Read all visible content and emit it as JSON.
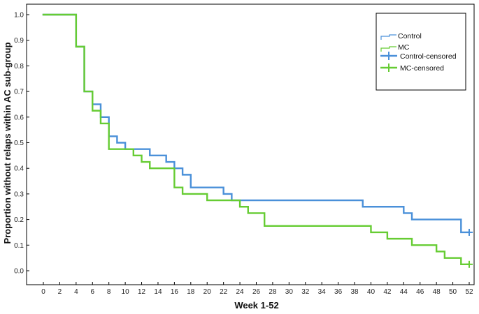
{
  "chart_data": {
    "type": "line",
    "subtype": "kaplan-meier-step",
    "xlabel": "Week 1-52",
    "ylabel": "Proportion without relaps within AC sub-group",
    "xlim": [
      0,
      52
    ],
    "ylim": [
      0.0,
      1.0
    ],
    "x_ticks": [
      "0",
      "2",
      "4",
      "6",
      "8",
      "10",
      "12",
      "14",
      "16",
      "18",
      "20",
      "22",
      "24",
      "26",
      "28",
      "30",
      "32",
      "34",
      "36",
      "38",
      "40",
      "42",
      "44",
      "46",
      "48",
      "50",
      "52"
    ],
    "y_ticks": [
      "0.0",
      "0.1",
      "0.2",
      "0.3",
      "0.4",
      "0.5",
      "0.6",
      "0.7",
      "0.8",
      "0.9",
      "1.0"
    ],
    "grid": false,
    "legend_position": "top-right",
    "legend": [
      "Control",
      "MC",
      "Control-censored",
      "MC-censored"
    ],
    "series": [
      {
        "name": "Control",
        "color": "#4a90d9",
        "x": [
          0,
          4,
          5,
          6,
          7,
          8,
          9,
          10,
          13,
          15,
          16,
          17,
          18,
          22,
          23,
          39,
          44,
          45,
          51,
          52
        ],
        "y": [
          1.0,
          0.875,
          0.7,
          0.65,
          0.6,
          0.525,
          0.5,
          0.475,
          0.45,
          0.425,
          0.4,
          0.375,
          0.325,
          0.3,
          0.275,
          0.25,
          0.225,
          0.2,
          0.15,
          0.15
        ]
      },
      {
        "name": "MC",
        "color": "#66cc33",
        "x": [
          0,
          4,
          5,
          6,
          7,
          8,
          11,
          12,
          13,
          16,
          17,
          20,
          24,
          25,
          27,
          40,
          42,
          45,
          48,
          49,
          51,
          52
        ],
        "y": [
          1.0,
          0.875,
          0.7,
          0.625,
          0.575,
          0.475,
          0.45,
          0.425,
          0.4,
          0.325,
          0.3,
          0.275,
          0.25,
          0.225,
          0.175,
          0.15,
          0.125,
          0.1,
          0.075,
          0.05,
          0.025,
          0.025
        ]
      }
    ],
    "censored": [
      {
        "name": "Control-censored",
        "color": "#4a90d9",
        "points": [
          {
            "x": 52,
            "y": 0.15
          }
        ]
      },
      {
        "name": "MC-censored",
        "color": "#66cc33",
        "points": [
          {
            "x": 52,
            "y": 0.025
          }
        ]
      }
    ]
  }
}
